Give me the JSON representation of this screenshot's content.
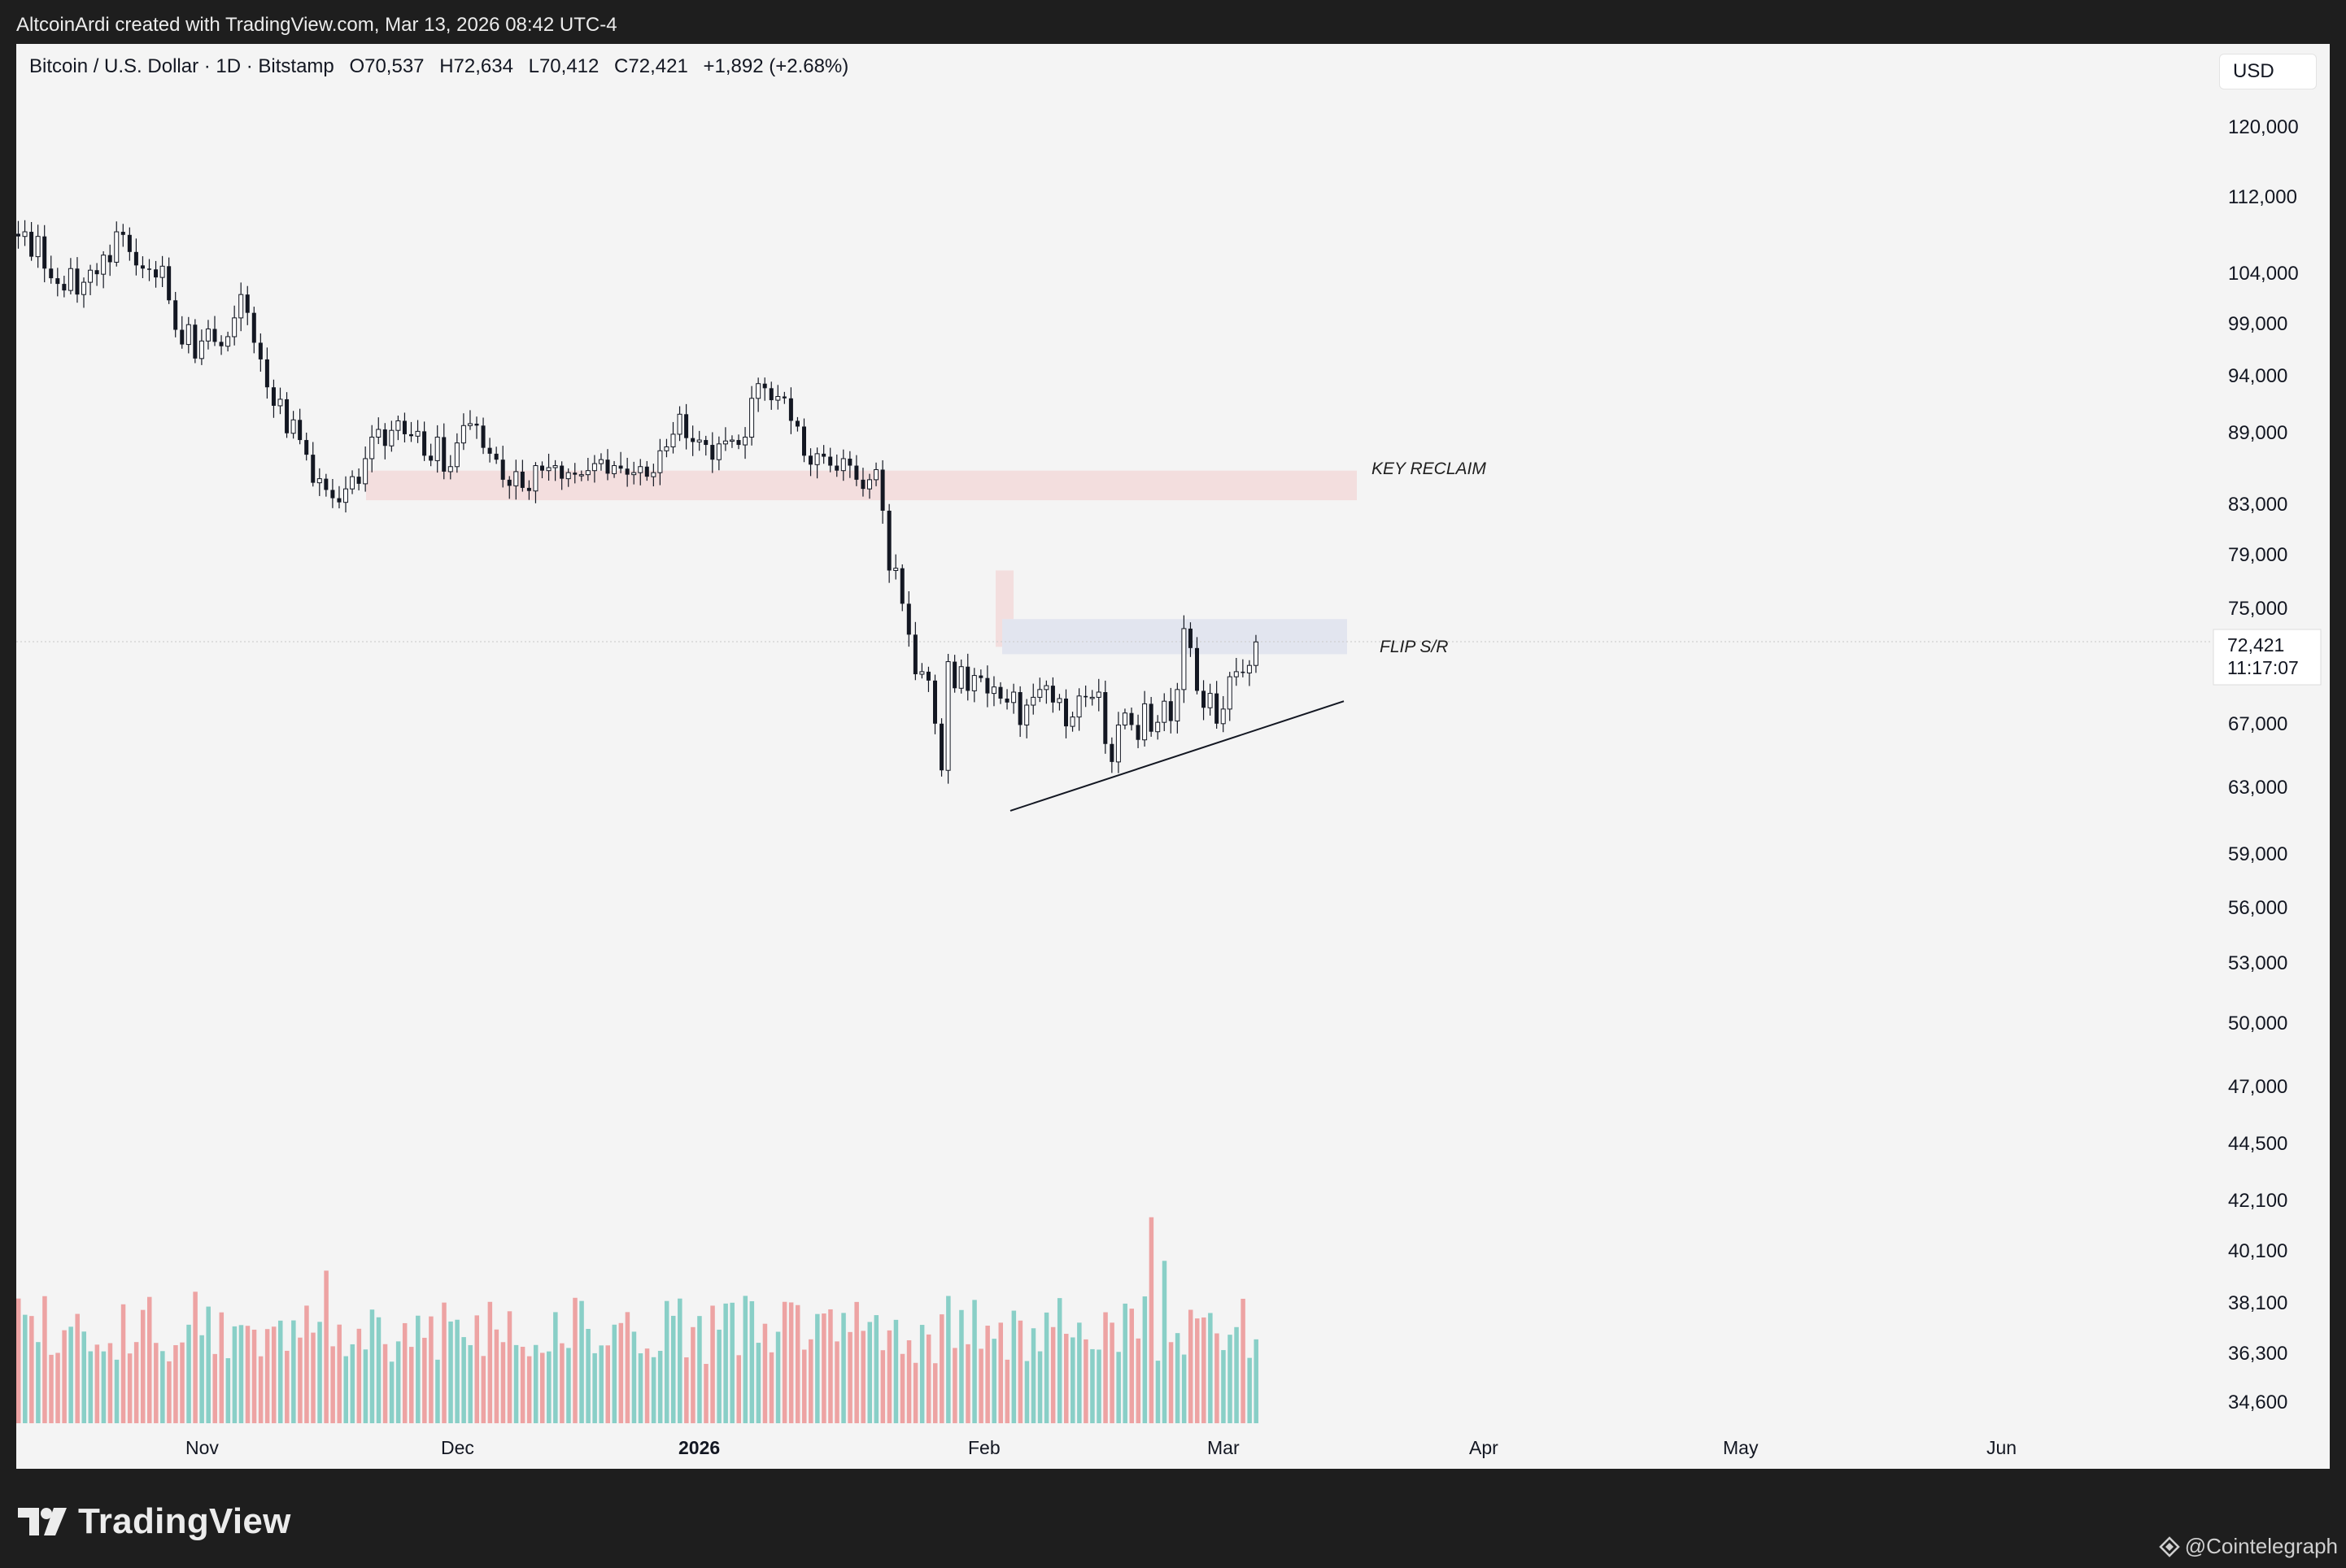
{
  "header": {
    "attribution": "AltcoinArdi created with TradingView.com, Mar 13, 2026 08:42 UTC-4"
  },
  "legend": {
    "symbol": "Bitcoin / U.S. Dollar · 1D · Bitstamp",
    "open": "O70,537",
    "high": "H72,634",
    "low": "L70,412",
    "close": "C72,421",
    "change": "+1,892 (+2.68%)"
  },
  "currency_button": {
    "label": "USD"
  },
  "price_label": {
    "price": "72,421",
    "countdown": "11:17:07"
  },
  "annotations": {
    "key_reclaim": "KEY RECLAIM",
    "flip_sr": "FLIP S/R"
  },
  "footer": {
    "brand": "TradingView",
    "credit": "@Cointelegraph"
  },
  "colors": {
    "background": "#f4f4f4",
    "candle": "#131722",
    "volume_up": "#89cfc7",
    "volume_down": "#eda3a3",
    "key_reclaim_zone": "#f3dede",
    "flip_zone": "#e2e5ef"
  },
  "chart_data": {
    "type": "candlestick",
    "symbol": "BTCUSD",
    "timeframe": "1D",
    "exchange": "Bitstamp",
    "y_scale": "log",
    "price_ticks": [
      120000,
      112000,
      104000,
      99000,
      94000,
      89000,
      83000,
      79000,
      75000,
      67000,
      63000,
      59000,
      56000,
      53000,
      50000,
      47000,
      44500,
      42100,
      40100,
      38100,
      36300,
      34600
    ],
    "x_ticks": [
      "Nov",
      "Dec",
      "2026",
      "Feb",
      "Mar",
      "Apr",
      "May",
      "Jun"
    ],
    "last_price": 72421,
    "zones": [
      {
        "label": "KEY RECLAIM",
        "low": 85000,
        "high": 87900
      },
      {
        "label": "FLIP S/R",
        "low": 71400,
        "high": 74300
      }
    ],
    "trendline": {
      "from": [
        "2026-02-06",
        59800
      ],
      "to": [
        "2026-03-17",
        67700
      ]
    },
    "series": [
      {
        "name": "close",
        "values": [
          114600,
          115200,
          112000,
          114600,
          110500,
          109300,
          108600,
          107800,
          110500,
          107300,
          108800,
          110300,
          109800,
          112200,
          111300,
          115200,
          114800,
          112600,
          110900,
          110500,
          110400,
          109400,
          110800,
          106600,
          103100,
          101400,
          103700,
          99800,
          101800,
          103200,
          101700,
          101200,
          102300,
          104500,
          107300,
          105100,
          101600,
          99700,
          96600,
          94600,
          95300,
          91700,
          93100,
          91000,
          89500,
          86700,
          87100,
          86000,
          85200,
          84800,
          86100,
          87300,
          86600,
          89100,
          91300,
          92100,
          90400,
          92000,
          93000,
          91600,
          91400,
          91900,
          89400,
          88900,
          91300,
          87800,
          88300,
          90700,
          92500,
          92700,
          92500,
          90200,
          89600,
          89000,
          87000,
          86400,
          87800,
          86200,
          85900,
          88400,
          87900,
          88200,
          88400,
          87100,
          87700,
          87500,
          87500,
          87900,
          88600,
          89000,
          87600,
          88400,
          88100,
          87500,
          87700,
          88300,
          87300,
          87700,
          89900,
          90300,
          91600,
          93700,
          91200,
          90800,
          91000,
          90500,
          89000,
          90600,
          90900,
          91000,
          90500,
          91300,
          95400,
          97000,
          96500,
          95200,
          95600,
          95400,
          93000,
          92400,
          89400,
          88500,
          89600,
          89300,
          88400,
          87900,
          89100,
          88400,
          87000,
          86100,
          87000,
          88000,
          84000,
          78500,
          78700,
          75600,
          73000,
          69800,
          70000,
          69300,
          66000,
          62600,
          70800,
          68700,
          70400,
          68500,
          69700,
          69500,
          68300,
          68800,
          67900,
          67600,
          68400,
          65900,
          67400,
          68000,
          68600,
          68900,
          67600,
          67900,
          65800,
          66500,
          68100,
          68000,
          68000,
          68400,
          64500,
          63200,
          65900,
          66800,
          65900,
          64800,
          67500,
          65400,
          66100,
          67700,
          66200,
          68600,
          73500,
          71900,
          68500,
          67200,
          68300,
          66000,
          67100,
          69600,
          70000,
          69900,
          70500,
          72400
        ]
      }
    ],
    "volume_bars_shown": true
  }
}
